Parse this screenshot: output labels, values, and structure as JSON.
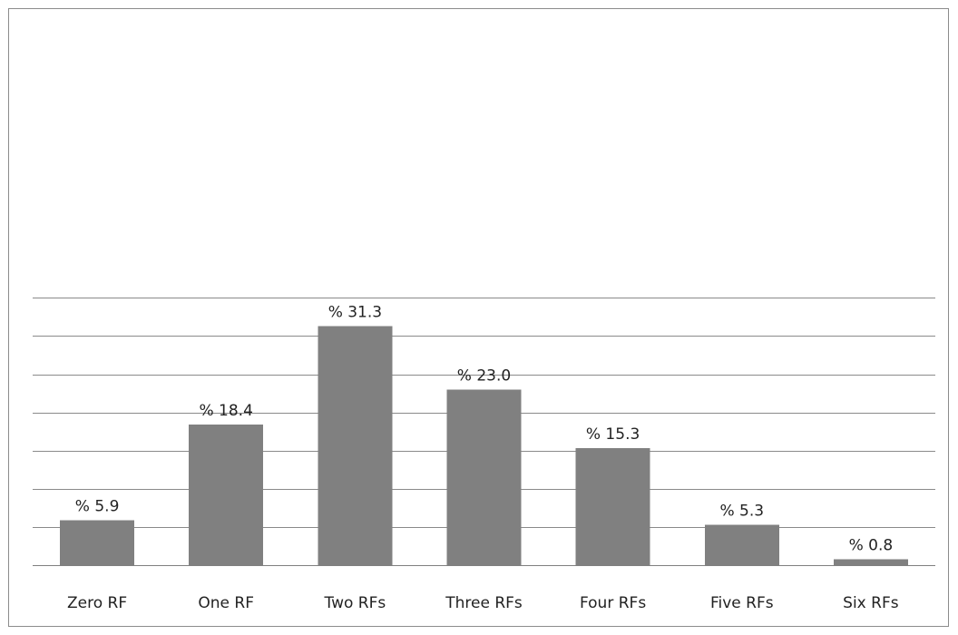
{
  "chart_data": {
    "type": "bar",
    "categories": [
      "Zero RF",
      "One RF",
      "Two RFs",
      "Three RFs",
      "Four RFs",
      "Five RFs",
      "Six RFs"
    ],
    "values": [
      5.9,
      18.4,
      31.3,
      23.0,
      15.3,
      5.3,
      0.8
    ],
    "data_labels": [
      "% 5.9",
      "% 18.4",
      "% 31.3",
      "% 23.0",
      "% 15.3",
      "% 5.3",
      "% 0.8"
    ],
    "title": "",
    "xlabel": "",
    "ylabel": "",
    "ylim": [
      0,
      35
    ],
    "y_tick_step": 5,
    "grid": true,
    "legend": "none",
    "bar_color": "#808080",
    "gridline_color": "#8a8a8a"
  }
}
